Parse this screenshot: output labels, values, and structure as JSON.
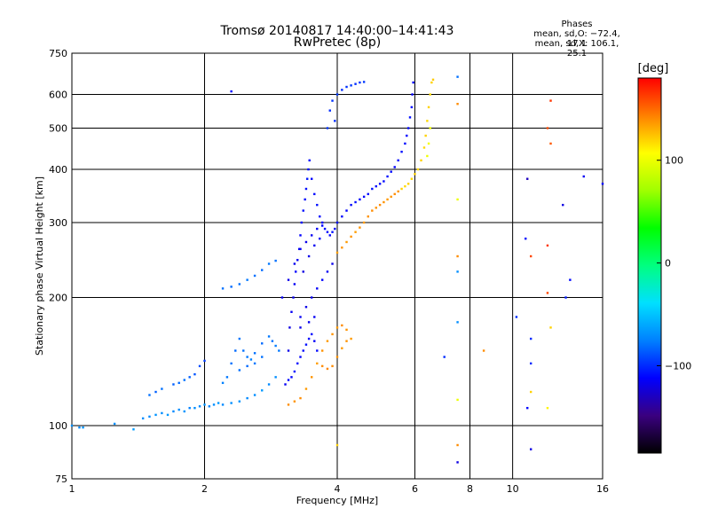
{
  "header": {
    "title_line1": "Tromsø 20140817 14:40:00–14:41:43",
    "title_line2": "RwPretec (8p)",
    "stats_title": "Phases",
    "stats_o": "mean, sd,O: −72.4, 17.1",
    "stats_x": "mean, sd,X: 106.1, 25.1"
  },
  "colorbar": {
    "unit": "[deg]",
    "ticks": [
      {
        "label": "100",
        "value": 100
      },
      {
        "label": "0",
        "value": 0
      },
      {
        "label": "−100",
        "value": -100
      }
    ],
    "vmin": -185,
    "vmax": 180,
    "colors": [
      "#000000",
      "#3a007f",
      "#0000ff",
      "#0080ff",
      "#00e0ff",
      "#00ff80",
      "#00ff00",
      "#a0ff00",
      "#ffff00",
      "#ff8000",
      "#ff0000"
    ]
  },
  "chart_data": {
    "type": "scatter",
    "title": "Tromsø 20140817 14:40:00–14:41:43",
    "subtitle": "RwPretec (8p)",
    "xlabel": "Frequency [MHz]",
    "ylabel": "Stationary phase Virtual Height [km]",
    "x_scale": "log",
    "y_scale": "log",
    "xlim": [
      1,
      16
    ],
    "ylim": [
      75,
      750
    ],
    "x_ticks": [
      {
        "value": 1,
        "label": "1"
      },
      {
        "value": 2,
        "label": "2"
      },
      {
        "value": 4,
        "label": "4"
      },
      {
        "value": 6,
        "label": "6"
      },
      {
        "value": 8,
        "label": "8"
      },
      {
        "value": 10,
        "label": "10"
      },
      {
        "value": 16,
        "label": "16"
      }
    ],
    "y_ticks": [
      {
        "value": 75,
        "label": "75"
      },
      {
        "value": 100,
        "label": "100"
      },
      {
        "value": 200,
        "label": "200"
      },
      {
        "value": 300,
        "label": "300"
      },
      {
        "value": 400,
        "label": "400"
      },
      {
        "value": 500,
        "label": "500"
      },
      {
        "value": 600,
        "label": "600"
      },
      {
        "value": 750,
        "label": "750"
      }
    ],
    "grid_x": [
      2,
      4,
      6,
      8,
      10
    ],
    "grid_y": [
      100,
      200,
      300,
      400,
      500,
      600
    ],
    "color_variable": "phase (deg)",
    "points": [
      [
        1.0,
        100,
        -70
      ],
      [
        1.04,
        99,
        -72
      ],
      [
        1.06,
        99,
        -68
      ],
      [
        1.25,
        101,
        -70
      ],
      [
        1.38,
        98,
        -65
      ],
      [
        1.45,
        104,
        -70
      ],
      [
        1.5,
        105,
        -72
      ],
      [
        1.55,
        106,
        -68
      ],
      [
        1.6,
        107,
        -70
      ],
      [
        1.65,
        106,
        -66
      ],
      [
        1.7,
        108,
        -72
      ],
      [
        1.75,
        109,
        -70
      ],
      [
        1.8,
        108,
        -68
      ],
      [
        1.85,
        110,
        -75
      ],
      [
        1.9,
        110,
        -70
      ],
      [
        1.95,
        111,
        -72
      ],
      [
        2.0,
        112,
        -68
      ],
      [
        2.05,
        111,
        -74
      ],
      [
        2.1,
        112,
        -70
      ],
      [
        2.15,
        113,
        -66
      ],
      [
        2.2,
        112,
        -72
      ],
      [
        2.3,
        113,
        -70
      ],
      [
        2.4,
        114,
        -68
      ],
      [
        2.5,
        116,
        -72
      ],
      [
        2.6,
        118,
        -70
      ],
      [
        2.7,
        121,
        -66
      ],
      [
        2.8,
        125,
        -72
      ],
      [
        2.9,
        130,
        -70
      ],
      [
        1.5,
        118,
        -80
      ],
      [
        1.55,
        120,
        -85
      ],
      [
        1.6,
        122,
        -80
      ],
      [
        1.7,
        125,
        -85
      ],
      [
        1.75,
        126,
        -82
      ],
      [
        1.8,
        128,
        -80
      ],
      [
        1.85,
        130,
        -85
      ],
      [
        1.9,
        132,
        -88
      ],
      [
        1.95,
        138,
        -90
      ],
      [
        2.0,
        142,
        -95
      ],
      [
        2.2,
        126,
        -75
      ],
      [
        2.25,
        130,
        -78
      ],
      [
        2.3,
        140,
        -80
      ],
      [
        2.35,
        150,
        -82
      ],
      [
        2.4,
        160,
        -78
      ],
      [
        2.45,
        150,
        -80
      ],
      [
        2.5,
        145,
        -78
      ],
      [
        2.55,
        143,
        -75
      ],
      [
        2.6,
        148,
        -80
      ],
      [
        2.7,
        156,
        -82
      ],
      [
        2.8,
        162,
        -78
      ],
      [
        2.85,
        158,
        -80
      ],
      [
        2.9,
        154,
        -76
      ],
      [
        2.95,
        150,
        -78
      ],
      [
        2.4,
        135,
        -80
      ],
      [
        2.5,
        138,
        -82
      ],
      [
        2.6,
        140,
        -78
      ],
      [
        2.7,
        145,
        -80
      ],
      [
        2.2,
        210,
        -80
      ],
      [
        2.3,
        212,
        -82
      ],
      [
        2.4,
        215,
        -80
      ],
      [
        2.5,
        220,
        -78
      ],
      [
        2.6,
        225,
        -80
      ],
      [
        2.7,
        232,
        -82
      ],
      [
        2.8,
        240,
        -78
      ],
      [
        2.9,
        244,
        -80
      ],
      [
        3.05,
        125,
        -115
      ],
      [
        3.1,
        128,
        -110
      ],
      [
        3.15,
        130,
        -112
      ],
      [
        3.2,
        134,
        -108
      ],
      [
        3.25,
        140,
        -110
      ],
      [
        3.3,
        145,
        -112
      ],
      [
        3.35,
        150,
        -110
      ],
      [
        3.4,
        155,
        -108
      ],
      [
        3.45,
        160,
        -112
      ],
      [
        3.5,
        164,
        -110
      ],
      [
        3.55,
        158,
        -114
      ],
      [
        3.6,
        150,
        -110
      ],
      [
        3.1,
        150,
        -118
      ],
      [
        3.12,
        170,
        -120
      ],
      [
        3.15,
        185,
        -115
      ],
      [
        3.18,
        200,
        -118
      ],
      [
        3.2,
        215,
        -115
      ],
      [
        3.22,
        230,
        -112
      ],
      [
        3.25,
        245,
        -116
      ],
      [
        3.28,
        260,
        -115
      ],
      [
        3.3,
        280,
        -112
      ],
      [
        3.32,
        300,
        -110
      ],
      [
        3.35,
        320,
        -108
      ],
      [
        3.38,
        340,
        -110
      ],
      [
        3.4,
        360,
        -108
      ],
      [
        3.42,
        380,
        -106
      ],
      [
        3.44,
        400,
        -108
      ],
      [
        3.46,
        420,
        -110
      ],
      [
        3.5,
        380,
        -112
      ],
      [
        3.55,
        350,
        -110
      ],
      [
        3.6,
        330,
        -108
      ],
      [
        3.65,
        310,
        -110
      ],
      [
        3.7,
        300,
        -112
      ],
      [
        3.75,
        290,
        -108
      ],
      [
        3.8,
        285,
        -110
      ],
      [
        3.85,
        280,
        -112
      ],
      [
        3.9,
        285,
        -108
      ],
      [
        3.95,
        290,
        -110
      ],
      [
        4.0,
        300,
        -108
      ],
      [
        4.1,
        310,
        -110
      ],
      [
        4.2,
        320,
        -112
      ],
      [
        4.3,
        330,
        -110
      ],
      [
        4.4,
        335,
        -108
      ],
      [
        4.5,
        340,
        -110
      ],
      [
        4.6,
        345,
        -112
      ],
      [
        4.7,
        350,
        -110
      ],
      [
        4.8,
        360,
        -108
      ],
      [
        4.9,
        365,
        -110
      ],
      [
        5.0,
        370,
        -112
      ],
      [
        5.1,
        375,
        -110
      ],
      [
        5.2,
        385,
        -108
      ],
      [
        5.3,
        395,
        -110
      ],
      [
        5.4,
        405,
        -112
      ],
      [
        5.5,
        420,
        -110
      ],
      [
        5.6,
        440,
        -108
      ],
      [
        5.7,
        460,
        -110
      ],
      [
        5.75,
        480,
        -112
      ],
      [
        5.8,
        500,
        -110
      ],
      [
        5.85,
        530,
        -108
      ],
      [
        5.9,
        560,
        -110
      ],
      [
        5.92,
        600,
        -112
      ],
      [
        5.95,
        640,
        -110
      ],
      [
        3.0,
        200,
        -115
      ],
      [
        3.1,
        220,
        -118
      ],
      [
        3.2,
        240,
        -116
      ],
      [
        3.3,
        260,
        -115
      ],
      [
        3.4,
        270,
        -118
      ],
      [
        3.5,
        280,
        -116
      ],
      [
        3.6,
        290,
        -114
      ],
      [
        3.7,
        295,
        -112
      ],
      [
        3.3,
        180,
        -115
      ],
      [
        3.4,
        190,
        -118
      ],
      [
        3.5,
        200,
        -116
      ],
      [
        3.6,
        210,
        -114
      ],
      [
        3.7,
        220,
        -112
      ],
      [
        3.8,
        230,
        -115
      ],
      [
        3.9,
        240,
        -118
      ],
      [
        3.35,
        230,
        -120
      ],
      [
        3.45,
        250,
        -118
      ],
      [
        3.55,
        265,
        -116
      ],
      [
        3.65,
        275,
        -114
      ],
      [
        3.3,
        170,
        -118
      ],
      [
        3.45,
        175,
        -116
      ],
      [
        3.55,
        180,
        -115
      ],
      [
        3.85,
        550,
        -100
      ],
      [
        3.9,
        580,
        -98
      ],
      [
        4.0,
        600,
        -96
      ],
      [
        4.1,
        615,
        -100
      ],
      [
        4.2,
        625,
        -98
      ],
      [
        4.3,
        630,
        -96
      ],
      [
        4.4,
        635,
        -100
      ],
      [
        4.5,
        640,
        -98
      ],
      [
        4.6,
        642,
        -96
      ],
      [
        3.95,
        520,
        -100
      ],
      [
        3.8,
        500,
        -98
      ],
      [
        3.1,
        112,
        140
      ],
      [
        3.2,
        114,
        138
      ],
      [
        3.3,
        116,
        140
      ],
      [
        3.4,
        122,
        136
      ],
      [
        3.5,
        130,
        138
      ],
      [
        3.6,
        140,
        135
      ],
      [
        3.7,
        150,
        138
      ],
      [
        3.8,
        158,
        136
      ],
      [
        3.9,
        164,
        138
      ],
      [
        4.0,
        170,
        136
      ],
      [
        4.1,
        172,
        140
      ],
      [
        4.2,
        168,
        138
      ],
      [
        4.3,
        160,
        136
      ],
      [
        3.7,
        138,
        140
      ],
      [
        3.8,
        136,
        142
      ],
      [
        3.9,
        138,
        140
      ],
      [
        4.0,
        145,
        138
      ],
      [
        4.1,
        152,
        136
      ],
      [
        4.2,
        158,
        138
      ],
      [
        4.0,
        255,
        135
      ],
      [
        4.1,
        262,
        138
      ],
      [
        4.2,
        270,
        136
      ],
      [
        4.3,
        278,
        138
      ],
      [
        4.4,
        285,
        135
      ],
      [
        4.5,
        292,
        138
      ],
      [
        4.6,
        300,
        136
      ],
      [
        4.7,
        310,
        138
      ],
      [
        4.8,
        320,
        140
      ],
      [
        4.9,
        325,
        138
      ],
      [
        5.0,
        330,
        140
      ],
      [
        5.1,
        335,
        138
      ],
      [
        5.2,
        340,
        136
      ],
      [
        5.3,
        345,
        138
      ],
      [
        5.4,
        350,
        140
      ],
      [
        5.5,
        355,
        138
      ],
      [
        5.6,
        360,
        120
      ],
      [
        5.7,
        365,
        118
      ],
      [
        5.8,
        370,
        120
      ],
      [
        5.9,
        380,
        118
      ],
      [
        6.0,
        390,
        120
      ],
      [
        6.1,
        400,
        118
      ],
      [
        6.2,
        420,
        120
      ],
      [
        6.3,
        450,
        118
      ],
      [
        6.35,
        480,
        120
      ],
      [
        6.4,
        520,
        118
      ],
      [
        6.45,
        560,
        120
      ],
      [
        6.5,
        600,
        118
      ],
      [
        6.55,
        640,
        120
      ],
      [
        6.6,
        650,
        122
      ],
      [
        6.5,
        500,
        100
      ],
      [
        6.45,
        460,
        102
      ],
      [
        6.4,
        430,
        100
      ],
      [
        7.5,
        660,
        -80
      ],
      [
        7.5,
        570,
        140
      ],
      [
        7.5,
        340,
        100
      ],
      [
        7.5,
        250,
        140
      ],
      [
        7.5,
        230,
        -70
      ],
      [
        7.5,
        175,
        -70
      ],
      [
        7.5,
        115,
        100
      ],
      [
        7.5,
        90,
        140
      ],
      [
        7.5,
        82,
        -120
      ],
      [
        7.0,
        145,
        -100
      ],
      [
        8.6,
        150,
        140
      ],
      [
        10.2,
        180,
        -100
      ],
      [
        10.8,
        380,
        -130
      ],
      [
        10.7,
        275,
        -110
      ],
      [
        10.8,
        110,
        -110
      ],
      [
        11.0,
        250,
        160
      ],
      [
        11.0,
        160,
        -100
      ],
      [
        11.0,
        140,
        -100
      ],
      [
        11.0,
        120,
        120
      ],
      [
        11.0,
        88,
        -120
      ],
      [
        12.2,
        580,
        165
      ],
      [
        12.0,
        500,
        160
      ],
      [
        12.2,
        460,
        155
      ],
      [
        12.0,
        265,
        165
      ],
      [
        12.0,
        205,
        160
      ],
      [
        12.2,
        170,
        120
      ],
      [
        12.0,
        110,
        110
      ],
      [
        13.0,
        330,
        -120
      ],
      [
        13.5,
        220,
        -110
      ],
      [
        13.2,
        200,
        -105
      ],
      [
        14.5,
        385,
        -115
      ],
      [
        16.0,
        370,
        -112
      ],
      [
        2.3,
        610,
        -110
      ],
      [
        4.0,
        90,
        120
      ]
    ]
  }
}
